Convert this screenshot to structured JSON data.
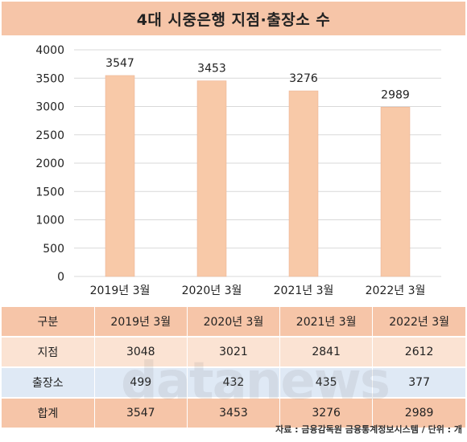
{
  "header": {
    "title": "4대 시중은행 지점·출장소 수"
  },
  "chart_data": {
    "type": "bar",
    "categories": [
      "2019년 3월",
      "2020년 3월",
      "2021년 3월",
      "2022년 3월"
    ],
    "values": [
      3547,
      3453,
      3276,
      2989
    ],
    "ylim": [
      0,
      4000
    ],
    "yticks": [
      0,
      500,
      1000,
      1500,
      2000,
      2500,
      3000,
      3500,
      4000
    ],
    "grid": true,
    "bar_color": "#f8c9a8",
    "data_labels": true
  },
  "table": {
    "columns": [
      "구분",
      "2019년 3월",
      "2020년 3월",
      "2021년 3월",
      "2022년 3월"
    ],
    "rows": [
      {
        "label": "지점",
        "values": [
          "3048",
          "3021",
          "2841",
          "2612"
        ]
      },
      {
        "label": "출장소",
        "values": [
          "499",
          "432",
          "435",
          "377"
        ]
      }
    ],
    "total": {
      "label": "합계",
      "values": [
        "3547",
        "3453",
        "3276",
        "2989"
      ]
    }
  },
  "watermark": "datanews",
  "source": "자료 : 금융감독원 금융통계정보시스템 / 단위 : 개",
  "colors": {
    "title_bg": "#f6c5a8",
    "row_odd": "#fbe3d3",
    "row_even": "#dfe9f5",
    "bar": "#f8c9a8"
  }
}
